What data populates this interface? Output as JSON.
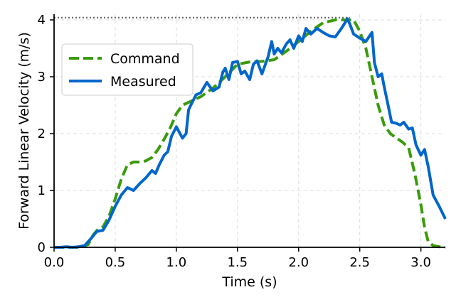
{
  "chart_data": {
    "type": "line",
    "xlabel": "Time (s)",
    "ylabel": "Forward Linear Velocity (m/s)",
    "xlim": [
      0.0,
      3.2
    ],
    "ylim": [
      0,
      4.1
    ],
    "xticks": [
      "0.0",
      "0.5",
      "1.0",
      "1.5",
      "2.0",
      "2.5",
      "3.0"
    ],
    "yticks": [
      "0",
      "1",
      "2",
      "3",
      "4"
    ],
    "grid": true,
    "legend_position": "upper-left",
    "reference_line": {
      "y": 4.04,
      "style": "dotted",
      "color": "#666666"
    },
    "series": [
      {
        "name": "Command",
        "style": "dashed",
        "color": "#3a9b0c",
        "x": [
          0.0,
          0.2,
          0.28,
          0.32,
          0.36,
          0.4,
          0.45,
          0.5,
          0.55,
          0.6,
          0.65,
          0.7,
          0.75,
          0.8,
          0.85,
          0.9,
          0.95,
          1.0,
          1.05,
          1.1,
          1.15,
          1.2,
          1.3,
          1.4,
          1.5,
          1.6,
          1.7,
          1.8,
          1.9,
          2.0,
          2.1,
          2.2,
          2.3,
          2.4,
          2.45,
          2.5,
          2.55,
          2.6,
          2.65,
          2.7,
          2.75,
          2.8,
          2.85,
          2.9,
          2.95,
          3.0,
          3.03,
          3.06,
          3.1,
          3.15,
          3.2
        ],
        "y": [
          0.0,
          0.0,
          0.05,
          0.22,
          0.32,
          0.36,
          0.55,
          0.85,
          1.2,
          1.45,
          1.5,
          1.5,
          1.52,
          1.58,
          1.72,
          1.9,
          2.1,
          2.35,
          2.5,
          2.55,
          2.6,
          2.65,
          2.8,
          3.0,
          3.22,
          3.26,
          3.27,
          3.3,
          3.45,
          3.62,
          3.8,
          3.95,
          4.0,
          4.0,
          4.0,
          3.8,
          3.5,
          3.0,
          2.5,
          2.15,
          2.0,
          1.92,
          1.85,
          1.75,
          1.3,
          0.75,
          0.35,
          0.1,
          0.03,
          0.01,
          0.0
        ]
      },
      {
        "name": "Measured",
        "style": "solid",
        "color": "#0066cc",
        "x": [
          0.0,
          0.05,
          0.1,
          0.15,
          0.2,
          0.25,
          0.3,
          0.35,
          0.4,
          0.45,
          0.5,
          0.55,
          0.6,
          0.65,
          0.7,
          0.75,
          0.8,
          0.83,
          0.86,
          0.9,
          0.93,
          0.96,
          1.0,
          1.05,
          1.08,
          1.1,
          1.13,
          1.16,
          1.2,
          1.25,
          1.3,
          1.35,
          1.38,
          1.4,
          1.43,
          1.46,
          1.5,
          1.53,
          1.56,
          1.6,
          1.63,
          1.66,
          1.7,
          1.75,
          1.78,
          1.8,
          1.83,
          1.86,
          1.9,
          1.93,
          1.96,
          2.0,
          2.03,
          2.06,
          2.1,
          2.15,
          2.2,
          2.25,
          2.3,
          2.35,
          2.4,
          2.42,
          2.45,
          2.5,
          2.55,
          2.6,
          2.62,
          2.65,
          2.68,
          2.7,
          2.73,
          2.76,
          2.8,
          2.83,
          2.86,
          2.9,
          2.93,
          2.96,
          3.0,
          3.03,
          3.06,
          3.1,
          3.15,
          3.2
        ],
        "y": [
          0.0,
          0.0,
          0.01,
          0.0,
          0.01,
          0.03,
          0.15,
          0.28,
          0.3,
          0.48,
          0.72,
          0.92,
          1.05,
          1.0,
          1.12,
          1.22,
          1.35,
          1.3,
          1.45,
          1.62,
          1.68,
          1.95,
          2.12,
          1.92,
          2.0,
          2.42,
          2.55,
          2.68,
          2.72,
          2.9,
          2.75,
          2.82,
          3.08,
          3.15,
          2.95,
          3.25,
          3.27,
          3.05,
          3.1,
          2.95,
          3.22,
          3.28,
          3.05,
          3.35,
          3.62,
          3.4,
          3.5,
          3.42,
          3.58,
          3.65,
          3.5,
          3.72,
          3.62,
          3.85,
          3.75,
          3.85,
          3.78,
          3.72,
          3.7,
          3.85,
          4.02,
          3.92,
          3.75,
          3.68,
          3.62,
          3.78,
          3.25,
          3.0,
          3.05,
          2.82,
          2.52,
          2.2,
          2.18,
          2.15,
          2.2,
          2.08,
          2.1,
          1.8,
          1.62,
          1.72,
          1.42,
          0.92,
          0.72,
          0.5
        ]
      }
    ]
  }
}
